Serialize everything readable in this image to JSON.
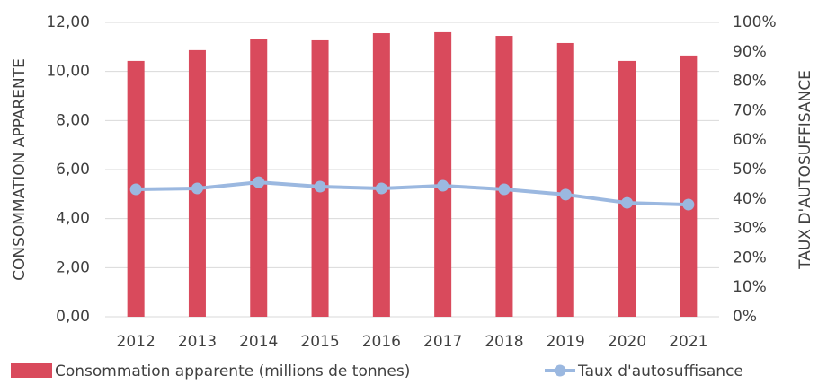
{
  "chart_data": {
    "type": "bar_line",
    "categories": [
      "2012",
      "2013",
      "2014",
      "2015",
      "2016",
      "2017",
      "2018",
      "2019",
      "2020",
      "2021"
    ],
    "series": [
      {
        "name": "Consommation apparente (millions de tonnes)",
        "type": "bar",
        "color": "#d94a5c",
        "values": [
          10.43,
          10.87,
          11.34,
          11.27,
          11.56,
          11.6,
          11.45,
          11.16,
          10.43,
          10.65
        ]
      },
      {
        "name": "Taux d'autosuffisance",
        "type": "line",
        "axis": "y2",
        "color": "#9bb8e0",
        "values": [
          43.3,
          43.6,
          45.7,
          44.2,
          43.6,
          44.5,
          43.3,
          41.5,
          38.7,
          38.1
        ]
      }
    ],
    "ylabel": "CONSOMMATION APPARENTE",
    "y2label": "TAUX D'AUTOSUFFISANCE",
    "ylim": [
      0,
      12
    ],
    "yticks": [
      {
        "value": 0,
        "label": "0,00"
      },
      {
        "value": 2,
        "label": "2,00"
      },
      {
        "value": 4,
        "label": "4,00"
      },
      {
        "value": 6,
        "label": "6,00"
      },
      {
        "value": 8,
        "label": "8,00"
      },
      {
        "value": 10,
        "label": "10,00"
      },
      {
        "value": 12,
        "label": "12,00"
      }
    ],
    "y2lim": [
      0,
      100
    ],
    "y2ticks": [
      {
        "value": 0,
        "label": "0%"
      },
      {
        "value": 10,
        "label": "10%"
      },
      {
        "value": 20,
        "label": "20%"
      },
      {
        "value": 30,
        "label": "30%"
      },
      {
        "value": 40,
        "label": "40%"
      },
      {
        "value": 50,
        "label": "50%"
      },
      {
        "value": 60,
        "label": "60%"
      },
      {
        "value": 70,
        "label": "70%"
      },
      {
        "value": 80,
        "label": "80%"
      },
      {
        "value": 90,
        "label": "90%"
      },
      {
        "value": 100,
        "label": "100%"
      }
    ],
    "grid": true,
    "legend": "bottom"
  }
}
